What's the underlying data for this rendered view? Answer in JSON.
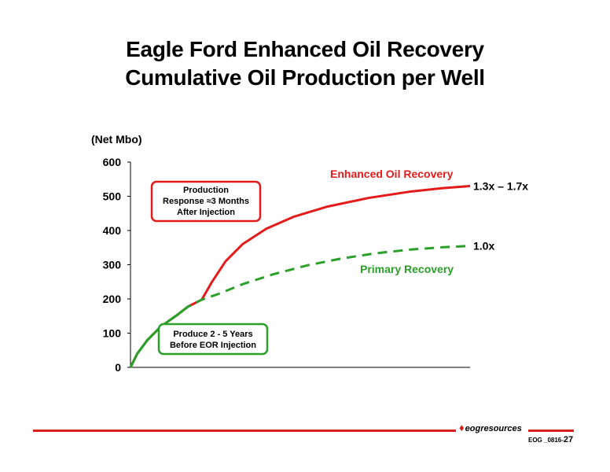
{
  "title": {
    "line1": "Eagle Ford Enhanced Oil Recovery",
    "line2": "Cumulative Oil Production per Well"
  },
  "chart_data": {
    "type": "line",
    "ylabel": "(Net Mbo)",
    "ylim": [
      0,
      600
    ],
    "yticks": [
      0,
      100,
      200,
      300,
      400,
      500,
      600
    ],
    "grid": false,
    "series": [
      {
        "name": "Enhanced Oil Recovery",
        "color": "#e31b1b",
        "style": "solid",
        "end_label": "1.3x – 1.7x",
        "points": [
          [
            0.0,
            0
          ],
          [
            0.02,
            40
          ],
          [
            0.05,
            80
          ],
          [
            0.09,
            120
          ],
          [
            0.14,
            155
          ],
          [
            0.17,
            178
          ],
          [
            0.21,
            198
          ],
          [
            0.24,
            250
          ],
          [
            0.28,
            310
          ],
          [
            0.33,
            360
          ],
          [
            0.4,
            405
          ],
          [
            0.48,
            440
          ],
          [
            0.58,
            470
          ],
          [
            0.7,
            495
          ],
          [
            0.82,
            513
          ],
          [
            0.92,
            524
          ],
          [
            1.0,
            530
          ]
        ]
      },
      {
        "name": "Primary Recovery",
        "color": "#2aa02a",
        "style": "dashed",
        "end_label": "1.0x",
        "points": [
          [
            0.0,
            0
          ],
          [
            0.02,
            40
          ],
          [
            0.05,
            80
          ],
          [
            0.09,
            120
          ],
          [
            0.14,
            155
          ],
          [
            0.17,
            178
          ],
          [
            0.21,
            198
          ],
          [
            0.26,
            215
          ],
          [
            0.33,
            243
          ],
          [
            0.42,
            272
          ],
          [
            0.52,
            298
          ],
          [
            0.62,
            318
          ],
          [
            0.72,
            333
          ],
          [
            0.82,
            344
          ],
          [
            0.92,
            351
          ],
          [
            1.0,
            355
          ]
        ]
      }
    ],
    "annotations": [
      {
        "id": "response",
        "text": [
          "Production",
          "Response ≈3 Months",
          "After Injection"
        ],
        "border": "#e31b1b"
      },
      {
        "id": "produce",
        "text": [
          "Produce 2 - 5 Years",
          "Before EOR Injection"
        ],
        "border": "#2aa02a"
      }
    ]
  },
  "footer": {
    "logo_text": "eogresources",
    "code": "EOG _0816-",
    "page": "27"
  }
}
